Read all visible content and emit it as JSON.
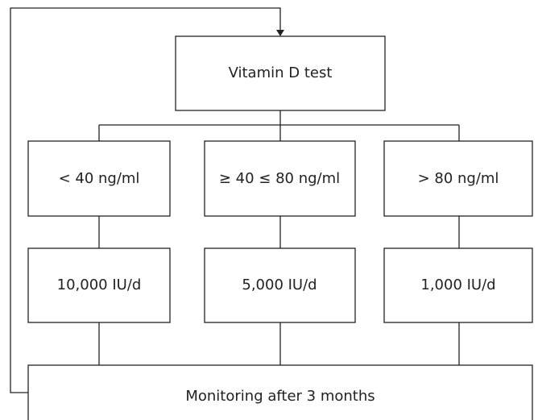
{
  "nodes": [
    {
      "label": "Vitamin D test"
    },
    {
      "label": "< 40 ng/ml"
    },
    {
      "label": "≥ 40 ≤ 80 ng/ml"
    },
    {
      "label": "> 80 ng/ml"
    },
    {
      "label": "10,000 IU/d"
    },
    {
      "label": "5,000 IU/d"
    },
    {
      "label": "1,000 IU/d"
    },
    {
      "label": "Monitoring after 3 months"
    }
  ]
}
